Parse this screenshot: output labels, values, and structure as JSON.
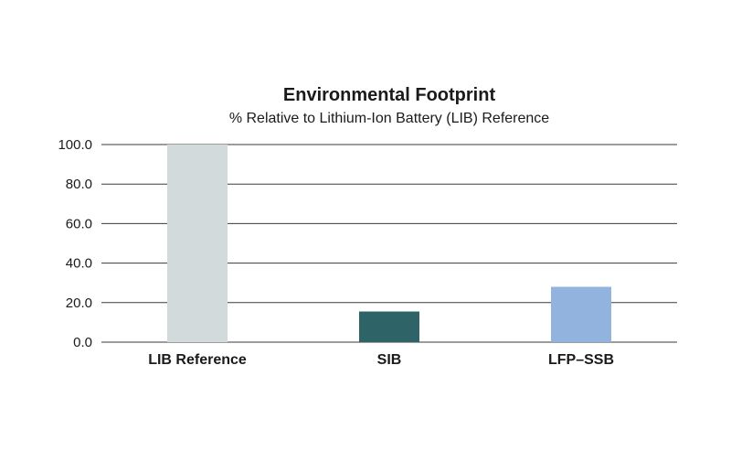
{
  "chart_data": {
    "type": "bar",
    "title": "Environmental Footprint",
    "subtitle": "% Relative to Lithium-Ion Battery (LIB) Reference",
    "xlabel": "",
    "ylabel": "",
    "categories": [
      "LIB Reference",
      "SIB",
      "LFP–SSB"
    ],
    "values": [
      100.0,
      15.5,
      28.0
    ],
    "colors": [
      "#d3dadc",
      "#2e6467",
      "#93b3df"
    ],
    "ylim": [
      0,
      100
    ],
    "yticks": [
      "0.0",
      "20.0",
      "40.0",
      "60.0",
      "80.0",
      "100.0"
    ],
    "grid": true,
    "legend": "none"
  }
}
